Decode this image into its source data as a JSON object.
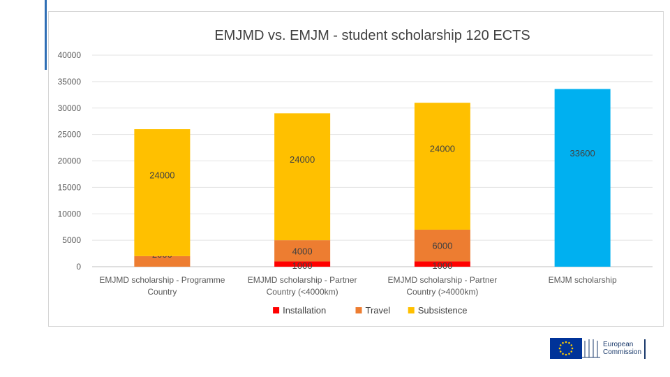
{
  "chart_data": {
    "type": "bar",
    "stacked": true,
    "title": "EMJMD vs. EMJM - student scholarship 120 ECTS",
    "categories": [
      [
        "EMJMD scholarship - Programme",
        "Country"
      ],
      [
        "EMJMD scholarship - Partner",
        "Country (<4000km)"
      ],
      [
        "EMJMD scholarship - Partner",
        "Country (>4000km)"
      ],
      [
        "EMJM scholarship"
      ]
    ],
    "ylim": [
      0,
      40000
    ],
    "yticks": [
      0,
      5000,
      10000,
      15000,
      20000,
      25000,
      30000,
      35000,
      40000
    ],
    "grid": true,
    "legend_position": "bottom",
    "series": [
      {
        "name": "Installation",
        "color": "#ff0000",
        "values": [
          0,
          1000,
          1000,
          0
        ],
        "labels": [
          "",
          "1000",
          "1000",
          ""
        ]
      },
      {
        "name": "Travel",
        "color": "#ed7d31",
        "values": [
          2000,
          4000,
          6000,
          0
        ],
        "labels": [
          "2000",
          "4000",
          "6000",
          ""
        ]
      },
      {
        "name": "Subsistence",
        "color": "#ffc000",
        "values": [
          24000,
          24000,
          24000,
          0
        ],
        "labels": [
          "24000",
          "24000",
          "24000",
          ""
        ]
      },
      {
        "name": "",
        "color": "#00b0f0",
        "values": [
          0,
          0,
          0,
          33600
        ],
        "labels": [
          "",
          "",
          "",
          "33600"
        ],
        "in_legend": false
      }
    ]
  },
  "footer": {
    "logo_line1": "European",
    "logo_line2": "Commission",
    "flag_color": "#003399",
    "star_color": "#ffcc00"
  }
}
